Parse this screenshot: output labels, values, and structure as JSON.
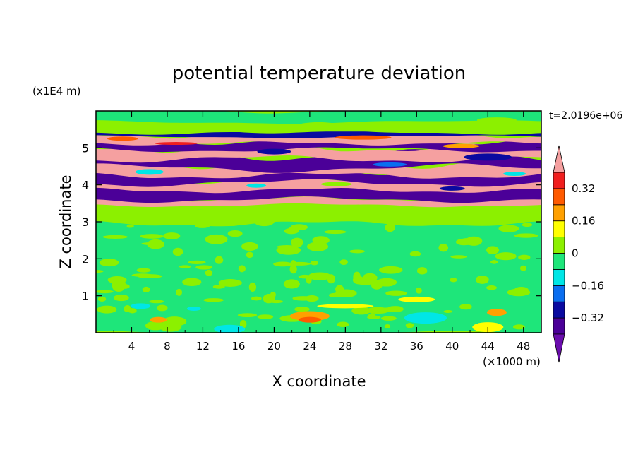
{
  "chart_data": {
    "type": "heatmap",
    "title": "potential temperature deviation",
    "xlabel": "X coordinate",
    "ylabel": "Z coordinate",
    "x_unit": "(×1000 m)",
    "y_unit": "(x1E4 m)",
    "time_label": "t=2.0196e+06",
    "xlim": [
      0,
      50
    ],
    "ylim": [
      0,
      6
    ],
    "x_ticks": [
      "4",
      "8",
      "12",
      "16",
      "20",
      "24",
      "28",
      "32",
      "36",
      "40",
      "44",
      "48"
    ],
    "y_ticks": [
      "1",
      "2",
      "3",
      "4",
      "5"
    ],
    "colorbar": {
      "levels": [
        -0.4,
        -0.32,
        -0.24,
        -0.16,
        -0.08,
        0,
        0.08,
        0.16,
        0.24,
        0.32,
        0.4
      ],
      "labels": [
        "0.32",
        "0.16",
        "0",
        "−0.16",
        "−0.32"
      ],
      "label_values": [
        0.32,
        0.16,
        0,
        -0.16,
        -0.32
      ],
      "colors": [
        "#6a0dad",
        "#4b0098",
        "#0a0aa0",
        "#0a6ef0",
        "#00e6e6",
        "#1ee67a",
        "#8cf000",
        "#ffff00",
        "#ffa000",
        "#ff5a00",
        "#f01e1e",
        "#f5a0a0"
      ],
      "extend": "both"
    },
    "background_color": "#8cf000"
  }
}
